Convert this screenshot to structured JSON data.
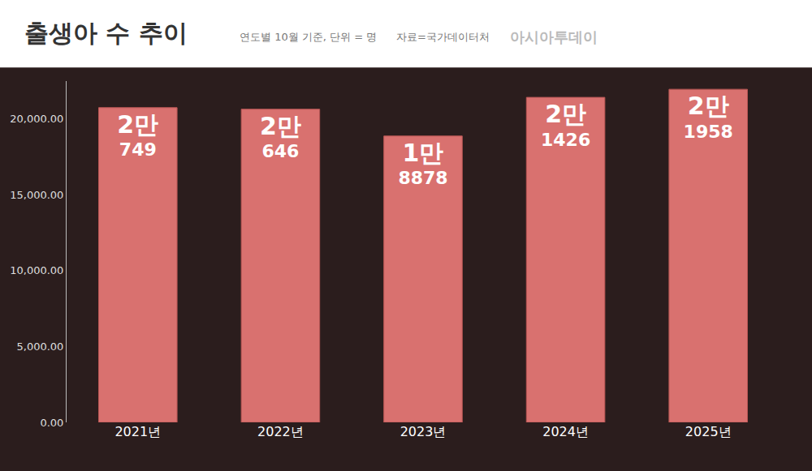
{
  "chart_data": {
    "type": "bar",
    "title": "출생아 수 추이",
    "subtitle": "연도별 10월 기준, 단위 = 명",
    "annotations": [
      "자료=국가데이터처",
      "아시아투데이"
    ],
    "categories": [
      "2021년",
      "2022년",
      "2023년",
      "2024년",
      "2025년"
    ],
    "values": [
      20749,
      20646,
      18878,
      21426,
      21958
    ],
    "value_labels": [
      "2만 749",
      "2만 646",
      "1만 8878",
      "2만 1426",
      "2만 1958"
    ],
    "data_labels": true,
    "color": "#d9716f",
    "ylim": [
      0,
      22500
    ],
    "yticks": [
      {
        "value": 0,
        "label": "0.00"
      },
      {
        "value": 5000,
        "label": "5,000.00"
      },
      {
        "value": 10000,
        "label": "10,000.00"
      },
      {
        "value": 15000,
        "label": "15,000.00"
      },
      {
        "value": 20000,
        "label": "20,000.00"
      }
    ],
    "grid": false
  }
}
